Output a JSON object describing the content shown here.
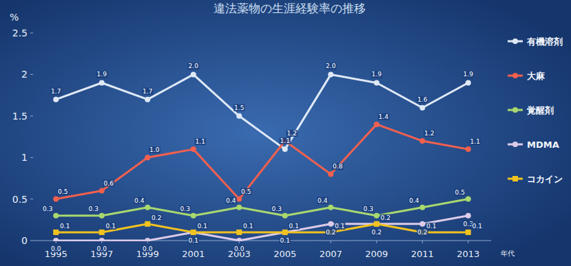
{
  "chart_data": {
    "type": "line",
    "title": "違法薬物の生涯経験率の推移",
    "y_label": "%",
    "x_label": "年代",
    "x": [
      1995,
      1997,
      1999,
      2001,
      2003,
      2005,
      2007,
      2009,
      2011,
      2013
    ],
    "xlim": [
      1994,
      2014
    ],
    "xticks": [
      1995,
      1997,
      1999,
      2001,
      2003,
      2005,
      2007,
      2009,
      2011,
      2013
    ],
    "ylim": [
      0,
      2.5
    ],
    "yticks": [
      0,
      0.5,
      1,
      1.5,
      2,
      2.5
    ],
    "grid": false,
    "legend": "right",
    "data_labels": true,
    "series": [
      {
        "name": "有機溶剤",
        "color": "#dfe9f6",
        "marker": "circle",
        "values": [
          1.7,
          1.9,
          1.7,
          2.0,
          1.5,
          1.1,
          2.0,
          1.9,
          1.6,
          1.9
        ],
        "value_labels": [
          "1.7",
          "1.9",
          "1.7",
          "2.0",
          "1.5",
          "1.1",
          "2.0",
          "1.9",
          "1.6",
          "1.9"
        ]
      },
      {
        "name": "大麻",
        "color": "#f2604e",
        "marker": "circle",
        "values": [
          0.5,
          0.6,
          1.0,
          1.1,
          0.5,
          1.2,
          0.8,
          1.4,
          1.2,
          1.1
        ],
        "value_labels": [
          "0.5",
          "0.6",
          "1.0",
          "1.1",
          "0.5",
          "1.2",
          "0.8",
          "1.4",
          "1.2",
          "1.1"
        ]
      },
      {
        "name": "覚醒剤",
        "color": "#a9d86e",
        "marker": "circle",
        "values": [
          0.3,
          0.3,
          0.4,
          0.3,
          0.4,
          0.3,
          0.4,
          0.3,
          0.4,
          0.5
        ],
        "value_labels": [
          "0.3",
          "0.3",
          "0.4",
          "0.3",
          "0.4",
          "0.3",
          "0.4",
          "0.3",
          "0.4",
          "0.5"
        ]
      },
      {
        "name": "MDMA",
        "color": "#dccbe9",
        "marker": "circle",
        "values": [
          0.0,
          0.0,
          0.0,
          0.1,
          0.0,
          0.1,
          0.2,
          0.2,
          0.2,
          0.3
        ],
        "value_labels": [
          "0.0",
          "0.0",
          "0.0",
          "0.1",
          "0.0",
          "0.1",
          "0.2",
          "0.2",
          "0.2",
          "0.3"
        ]
      },
      {
        "name": "コカイン",
        "color": "#f2c21f",
        "marker": "square",
        "values": [
          0.1,
          0.1,
          0.2,
          0.1,
          0.1,
          0.1,
          0.1,
          0.2,
          0.1,
          0.1
        ],
        "value_labels": [
          "0.1",
          "0.1",
          "0.2",
          "0.1",
          "0.1",
          "0.1",
          "0.1",
          "0.2",
          "0.1",
          "0.1"
        ]
      }
    ]
  }
}
